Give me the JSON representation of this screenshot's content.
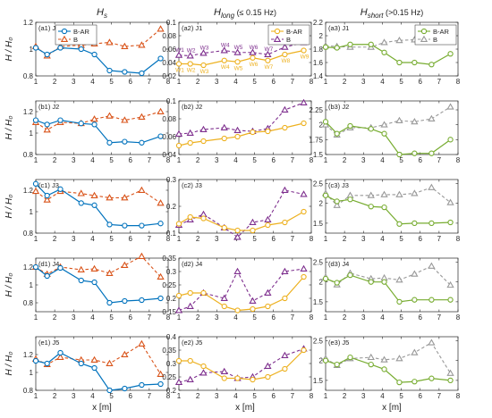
{
  "figure": {
    "column_titles": [
      "H",
      "H",
      "H"
    ],
    "column_title_subs": [
      "s",
      "long",
      "short"
    ],
    "column_title_suffix": [
      "",
      " (≤ 0.15 Hz)",
      " (>0.15 Hz)"
    ],
    "ylabel": "H / H₀",
    "xlabel": "x [m]",
    "colors": {
      "BAR": [
        "#0072bd",
        "#edb120",
        "#77ac30"
      ],
      "B": [
        "#d95319",
        "#7e2f8e",
        "#999999"
      ]
    }
  },
  "chart_data": [
    {
      "id": "a1",
      "label": "(a1) J1",
      "type": "line",
      "xlim": [
        1,
        8
      ],
      "ylim": [
        0.8,
        1.2
      ],
      "yticks": [
        0.8,
        1,
        1.2
      ],
      "yticklabels": [
        "0.8",
        "1",
        "1.2"
      ],
      "x": [
        1,
        1.6,
        2.3,
        3.4,
        4.1,
        4.9,
        5.7,
        6.6,
        7.6
      ],
      "legend": [
        "B-AR",
        "B"
      ],
      "series": [
        {
          "name": "B-AR",
          "values": [
            1.01,
            0.96,
            1.01,
            1.0,
            0.96,
            0.84,
            0.83,
            0.82,
            0.93
          ]
        },
        {
          "name": "B",
          "values": [
            1.02,
            0.95,
            1.02,
            1.03,
            1.04,
            1.05,
            1.02,
            1.03,
            1.15
          ]
        }
      ]
    },
    {
      "id": "a2",
      "label": "(a2) J1",
      "type": "line",
      "xlim": [
        1,
        8
      ],
      "ylim": [
        0.02,
        0.1
      ],
      "yticks": [
        0.02,
        0.04,
        0.06,
        0.08,
        0.1
      ],
      "yticklabels": [
        "0.02",
        "0.04",
        "0.06",
        "0.08",
        "0.1"
      ],
      "x": [
        1,
        1.6,
        2.3,
        3.4,
        4.1,
        4.9,
        5.7,
        6.6,
        7.6
      ],
      "legend": [
        "B-AR",
        "B"
      ],
      "point_labels": [
        "W1",
        "W2",
        "W3",
        "W4",
        "W5",
        "W6",
        "W7",
        "W8",
        "W9"
      ],
      "series": [
        {
          "name": "B-AR",
          "values": [
            0.038,
            0.038,
            0.036,
            0.043,
            0.041,
            0.047,
            0.043,
            0.052,
            0.058
          ]
        },
        {
          "name": "B",
          "values": [
            0.051,
            0.05,
            0.054,
            0.058,
            0.055,
            0.055,
            0.052,
            0.063,
            0.07
          ]
        }
      ]
    },
    {
      "id": "a3",
      "label": "(a3) J1",
      "type": "line",
      "xlim": [
        1,
        8
      ],
      "ylim": [
        1.4,
        2.2
      ],
      "yticks": [
        1.4,
        1.6,
        1.8,
        2,
        2.2
      ],
      "yticklabels": [
        "1.4",
        "1.6",
        "1.8",
        "2",
        "2.2"
      ],
      "x": [
        1,
        1.6,
        2.3,
        3.4,
        4.1,
        4.9,
        5.7,
        6.6,
        7.6
      ],
      "legend": [
        "B-AR",
        "B"
      ],
      "series": [
        {
          "name": "B-AR",
          "values": [
            1.83,
            1.82,
            1.87,
            1.87,
            1.75,
            1.6,
            1.6,
            1.57,
            1.73
          ]
        },
        {
          "name": "B",
          "values": [
            1.85,
            1.84,
            1.83,
            1.83,
            1.9,
            1.93,
            1.94,
            1.93,
            2.08
          ]
        }
      ]
    },
    {
      "id": "b1",
      "label": "(b1) J2",
      "type": "line",
      "xlim": [
        1,
        8
      ],
      "ylim": [
        0.8,
        1.3
      ],
      "yticks": [
        0.8,
        1,
        1.2
      ],
      "yticklabels": [
        "0.8",
        "1",
        "1.2"
      ],
      "x": [
        1,
        1.6,
        2.3,
        3.4,
        4.1,
        4.9,
        5.7,
        6.6,
        7.6
      ],
      "series": [
        {
          "name": "B-AR",
          "values": [
            1.12,
            1.08,
            1.12,
            1.09,
            1.08,
            0.91,
            0.92,
            0.91,
            0.97
          ]
        },
        {
          "name": "B",
          "values": [
            1.1,
            1.03,
            1.1,
            1.09,
            1.13,
            1.16,
            1.12,
            1.15,
            1.2
          ]
        }
      ]
    },
    {
      "id": "b2",
      "label": "(b2) J2",
      "type": "line",
      "xlim": [
        1,
        8
      ],
      "ylim": [
        0.04,
        0.1
      ],
      "yticks": [
        0.04,
        0.06,
        0.08,
        0.1
      ],
      "yticklabels": [
        "0.04",
        "0.06",
        "0.08",
        "0.1"
      ],
      "x": [
        1,
        1.6,
        2.3,
        3.4,
        4.1,
        4.9,
        5.7,
        6.6,
        7.6
      ],
      "series": [
        {
          "name": "B-AR",
          "values": [
            0.05,
            0.053,
            0.055,
            0.058,
            0.06,
            0.065,
            0.066,
            0.07,
            0.075
          ]
        },
        {
          "name": "B",
          "values": [
            0.063,
            0.064,
            0.068,
            0.07,
            0.067,
            0.066,
            0.069,
            0.09,
            0.098
          ]
        }
      ]
    },
    {
      "id": "b3",
      "label": "(b3) J2",
      "type": "line",
      "xlim": [
        1,
        8
      ],
      "ylim": [
        1.5,
        2.4
      ],
      "yticks": [
        1.5,
        1.75,
        2,
        2.25
      ],
      "yticklabels": [
        "1.5",
        "1.75",
        "2",
        "2.25"
      ],
      "x": [
        1,
        1.6,
        2.3,
        3.4,
        4.1,
        4.9,
        5.7,
        6.6,
        7.6
      ],
      "series": [
        {
          "name": "B-AR",
          "values": [
            2.05,
            1.85,
            1.98,
            1.93,
            1.85,
            1.5,
            1.52,
            1.52,
            1.75
          ]
        },
        {
          "name": "B",
          "values": [
            2.0,
            1.83,
            1.95,
            1.95,
            2.0,
            2.07,
            2.05,
            2.1,
            2.3
          ]
        }
      ]
    },
    {
      "id": "c1",
      "label": "(c1) J3",
      "type": "line",
      "xlim": [
        1,
        8
      ],
      "ylim": [
        0.8,
        1.3
      ],
      "yticks": [
        0.8,
        1,
        1.2
      ],
      "yticklabels": [
        "0.8",
        "1",
        "1.2"
      ],
      "x": [
        1,
        1.6,
        2.3,
        3.4,
        4.1,
        4.9,
        5.7,
        6.6,
        7.6
      ],
      "series": [
        {
          "name": "B-AR",
          "values": [
            1.26,
            1.15,
            1.21,
            1.08,
            1.06,
            0.88,
            0.87,
            0.87,
            0.89
          ]
        },
        {
          "name": "B",
          "values": [
            1.19,
            1.11,
            1.19,
            1.17,
            1.15,
            1.13,
            1.13,
            1.2,
            1.08
          ]
        }
      ]
    },
    {
      "id": "c2",
      "label": "(c2) J3",
      "type": "line",
      "xlim": [
        1,
        8
      ],
      "ylim": [
        0.1,
        0.3
      ],
      "yticks": [
        0.1,
        0.2,
        0.3
      ],
      "yticklabels": [
        "0.1",
        "0.2",
        "0.3"
      ],
      "x": [
        1,
        1.6,
        2.3,
        3.4,
        4.1,
        4.9,
        5.7,
        6.6,
        7.6
      ],
      "series": [
        {
          "name": "B-AR",
          "values": [
            0.135,
            0.16,
            0.155,
            0.12,
            0.11,
            0.11,
            0.13,
            0.14,
            0.18
          ]
        },
        {
          "name": "B",
          "values": [
            0.13,
            0.15,
            0.17,
            0.12,
            0.085,
            0.14,
            0.15,
            0.26,
            0.245
          ]
        }
      ]
    },
    {
      "id": "c3",
      "label": "(c3) J3",
      "type": "line",
      "xlim": [
        1,
        8
      ],
      "ylim": [
        1.25,
        2.6
      ],
      "yticks": [
        1.5,
        2,
        2.5
      ],
      "yticklabels": [
        "1.5",
        "2",
        "2.5"
      ],
      "x": [
        1,
        1.6,
        2.3,
        3.4,
        4.1,
        4.9,
        5.7,
        6.6,
        7.6
      ],
      "series": [
        {
          "name": "B-AR",
          "values": [
            2.2,
            2.05,
            2.1,
            1.92,
            1.9,
            1.48,
            1.5,
            1.5,
            1.52
          ]
        },
        {
          "name": "B",
          "values": [
            2.25,
            1.95,
            2.2,
            2.2,
            2.22,
            2.22,
            2.25,
            2.4,
            2.02
          ]
        }
      ]
    },
    {
      "id": "d1",
      "label": "(d1) J4",
      "type": "line",
      "xlim": [
        1,
        8
      ],
      "ylim": [
        0.7,
        1.3
      ],
      "yticks": [
        0.8,
        1,
        1.2
      ],
      "yticklabels": [
        "0.8",
        "1",
        "1.2"
      ],
      "x": [
        1,
        1.6,
        2.3,
        3.4,
        4.1,
        4.9,
        5.7,
        6.6,
        7.6
      ],
      "series": [
        {
          "name": "B-AR",
          "values": [
            1.2,
            1.1,
            1.19,
            1.05,
            1.03,
            0.8,
            0.82,
            0.83,
            0.85
          ]
        },
        {
          "name": "B",
          "values": [
            1.2,
            1.12,
            1.2,
            1.17,
            1.18,
            1.13,
            1.22,
            1.32,
            1.09
          ]
        }
      ]
    },
    {
      "id": "d2",
      "label": "(d2) J4",
      "type": "line",
      "xlim": [
        1,
        8
      ],
      "ylim": [
        0.15,
        0.35
      ],
      "yticks": [
        0.15,
        0.2,
        0.25,
        0.3,
        0.35
      ],
      "yticklabels": [
        "0.15",
        "0.2",
        "0.25",
        "0.3",
        "0.35"
      ],
      "x": [
        1,
        1.6,
        2.3,
        3.4,
        4.1,
        4.9,
        5.7,
        6.6,
        7.6
      ],
      "series": [
        {
          "name": "B-AR",
          "values": [
            0.21,
            0.22,
            0.22,
            0.17,
            0.155,
            0.16,
            0.17,
            0.2,
            0.28
          ]
        },
        {
          "name": "B",
          "values": [
            0.155,
            0.17,
            0.22,
            0.2,
            0.3,
            0.19,
            0.22,
            0.3,
            0.31
          ]
        }
      ]
    },
    {
      "id": "d3",
      "label": "(d3) J4",
      "type": "line",
      "xlim": [
        1,
        8
      ],
      "ylim": [
        1.25,
        2.6
      ],
      "yticks": [
        1.5,
        2,
        2.5
      ],
      "yticklabels": [
        "1.5",
        "2",
        "2.5"
      ],
      "x": [
        1,
        1.6,
        2.3,
        3.4,
        4.1,
        4.9,
        5.7,
        6.6,
        7.6
      ],
      "series": [
        {
          "name": "B-AR",
          "values": [
            2.08,
            1.98,
            2.17,
            2.0,
            2.0,
            1.5,
            1.55,
            1.55,
            1.55
          ]
        },
        {
          "name": "B",
          "values": [
            2.12,
            1.93,
            2.22,
            2.08,
            2.1,
            2.05,
            2.2,
            2.4,
            1.92
          ]
        }
      ]
    },
    {
      "id": "e1",
      "label": "(e1) J5",
      "type": "line",
      "xlim": [
        1,
        8
      ],
      "ylim": [
        0.8,
        1.4
      ],
      "yticks": [
        0.8,
        1,
        1.2
      ],
      "yticklabels": [
        "0.8",
        "1",
        "1.2"
      ],
      "x": [
        1,
        1.6,
        2.3,
        3.4,
        4.1,
        4.9,
        5.7,
        6.6,
        7.6
      ],
      "series": [
        {
          "name": "B-AR",
          "values": [
            1.13,
            1.1,
            1.22,
            1.1,
            1.05,
            0.8,
            0.82,
            0.86,
            0.87
          ]
        },
        {
          "name": "B",
          "values": [
            1.15,
            1.09,
            1.17,
            1.14,
            1.14,
            1.1,
            1.2,
            1.32,
            0.98
          ]
        }
      ]
    },
    {
      "id": "e2",
      "label": "(e2) J5",
      "type": "line",
      "xlim": [
        1,
        8
      ],
      "ylim": [
        0.2,
        0.4
      ],
      "yticks": [
        0.2,
        0.25,
        0.3,
        0.35,
        0.4
      ],
      "yticklabels": [
        "0.2",
        "0.25",
        "0.3",
        "0.35",
        "0.4"
      ],
      "x": [
        1,
        1.6,
        2.3,
        3.4,
        4.1,
        4.9,
        5.7,
        6.6,
        7.6
      ],
      "series": [
        {
          "name": "B-AR",
          "values": [
            0.31,
            0.31,
            0.29,
            0.245,
            0.245,
            0.24,
            0.25,
            0.28,
            0.35
          ]
        },
        {
          "name": "B",
          "values": [
            0.23,
            0.24,
            0.265,
            0.27,
            0.245,
            0.25,
            0.29,
            0.33,
            0.355
          ]
        }
      ]
    },
    {
      "id": "e3",
      "label": "(e3) J5",
      "type": "line",
      "xlim": [
        1,
        8
      ],
      "ylim": [
        1.25,
        2.6
      ],
      "yticks": [
        1.5,
        2,
        2.5
      ],
      "yticklabels": [
        "1.5",
        "2",
        "2.5"
      ],
      "x": [
        1,
        1.6,
        2.3,
        3.4,
        4.1,
        4.9,
        5.7,
        6.6,
        7.6
      ],
      "series": [
        {
          "name": "B-AR",
          "values": [
            2.0,
            1.9,
            2.08,
            1.9,
            1.78,
            1.45,
            1.47,
            1.55,
            1.5
          ]
        },
        {
          "name": "B",
          "values": [
            2.05,
            1.88,
            2.05,
            2.08,
            2.02,
            2.05,
            2.2,
            2.45,
            1.68
          ]
        }
      ]
    }
  ]
}
